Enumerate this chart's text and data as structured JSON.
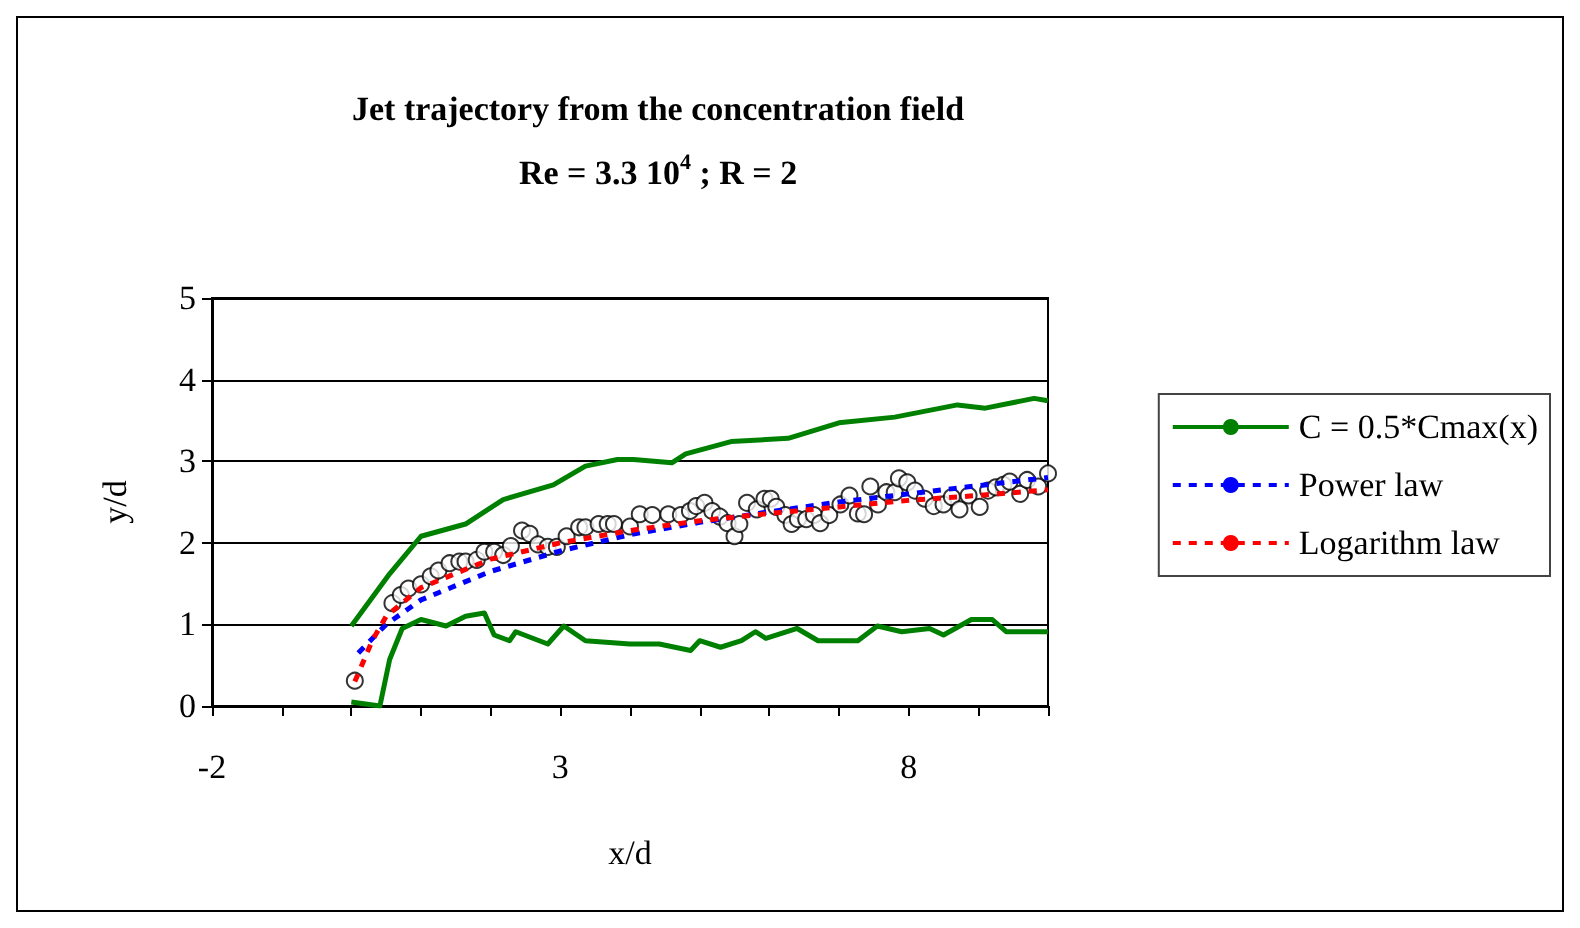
{
  "chart_data": {
    "type": "line",
    "title": "Jet trajectory from the concentration field",
    "subtitle": "Re = 3.3 10$^{4}$ ; R = 2",
    "xlabel": "x/d",
    "ylabel": "y/d",
    "xlim": [
      -2,
      10
    ],
    "xticks": [
      -2,
      {
        "value": -1,
        "label": null
      },
      {
        "value": 0,
        "label": null
      },
      {
        "value": 1,
        "label": null
      },
      {
        "value": 2,
        "label": null
      },
      3,
      {
        "value": 4,
        "label": null
      },
      {
        "value": 5,
        "label": null
      },
      {
        "value": 6,
        "label": null
      },
      {
        "value": 7,
        "label": null
      },
      8,
      {
        "value": 9,
        "label": null
      },
      {
        "value": 10,
        "label": null
      }
    ],
    "ylim": [
      0,
      5
    ],
    "yticks": [
      0,
      1,
      2,
      3,
      4,
      5
    ],
    "grid": "y",
    "legend": "right",
    "series": [
      {
        "name": "C = 0.5*Cmax(x)",
        "type": "line",
        "color": "#008000",
        "line_style": "solid",
        "marker": "none",
        "x": [
          0,
          0.55,
          1.0,
          1.64,
          2.18,
          2.9,
          3.36,
          3.82,
          4.05,
          4.6,
          4.8,
          5.45,
          6.27,
          7.0,
          7.8,
          8.7,
          9.1,
          9.8,
          10
        ],
        "values": [
          0.98,
          1.62,
          2.08,
          2.23,
          2.53,
          2.71,
          2.94,
          3.02,
          3.02,
          2.98,
          3.09,
          3.24,
          3.28,
          3.47,
          3.54,
          3.69,
          3.65,
          3.77,
          3.74
        ]
      },
      {
        "type": "line",
        "color": "#008000",
        "line_style": "solid",
        "marker": "none",
        "x": [
          0,
          0.41,
          0.55,
          0.73,
          1.0,
          1.36,
          1.64,
          1.91,
          2.05,
          2.27,
          2.36,
          2.82,
          3.05,
          3.36,
          4.0,
          4.42,
          4.87,
          5.0,
          5.3,
          5.6,
          5.8,
          5.95,
          6.4,
          6.7,
          7.27,
          7.55,
          7.9,
          8.3,
          8.5,
          8.9,
          9.2,
          9.4,
          10
        ],
        "values": [
          0.05,
          0.0,
          0.57,
          0.95,
          1.06,
          0.98,
          1.1,
          1.14,
          0.87,
          0.8,
          0.91,
          0.76,
          0.98,
          0.8,
          0.76,
          0.76,
          0.68,
          0.8,
          0.72,
          0.8,
          0.91,
          0.83,
          0.95,
          0.8,
          0.8,
          0.98,
          0.91,
          0.95,
          0.87,
          1.06,
          1.06,
          0.91,
          0.91
        ]
      },
      {
        "type": "scatter",
        "color": "#ffffff",
        "marker": "circle",
        "x": [
          0.05,
          0.59,
          0.71,
          0.82,
          1.0,
          1.14,
          1.25,
          1.41,
          1.55,
          1.64,
          1.8,
          1.91,
          2.05,
          2.18,
          2.29,
          2.45,
          2.56,
          2.68,
          2.82,
          2.95,
          3.09,
          3.27,
          3.36,
          3.55,
          3.68,
          3.77,
          4.0,
          4.14,
          4.32,
          4.55,
          4.73,
          4.86,
          4.95,
          5.07,
          5.18,
          5.29,
          5.4,
          5.5,
          5.57,
          5.68,
          5.82,
          5.93,
          6.02,
          6.1,
          6.23,
          6.32,
          6.41,
          6.53,
          6.64,
          6.73,
          6.86,
          7.02,
          7.15,
          7.27,
          7.36,
          7.45,
          7.56,
          7.68,
          7.8,
          7.86,
          7.98,
          8.09,
          8.23,
          8.36,
          8.5,
          8.62,
          8.73,
          8.86,
          9.02,
          9.14,
          9.25,
          9.36,
          9.45,
          9.6,
          9.7,
          9.86,
          10.0
        ],
        "values": [
          0.31,
          1.26,
          1.36,
          1.44,
          1.49,
          1.59,
          1.66,
          1.75,
          1.77,
          1.77,
          1.79,
          1.89,
          1.89,
          1.85,
          1.96,
          2.15,
          2.11,
          1.98,
          1.95,
          1.95,
          2.08,
          2.19,
          2.19,
          2.23,
          2.23,
          2.23,
          2.2,
          2.35,
          2.34,
          2.35,
          2.34,
          2.39,
          2.45,
          2.49,
          2.39,
          2.32,
          2.24,
          2.08,
          2.23,
          2.49,
          2.41,
          2.54,
          2.54,
          2.44,
          2.34,
          2.23,
          2.29,
          2.29,
          2.34,
          2.24,
          2.34,
          2.47,
          2.58,
          2.36,
          2.35,
          2.69,
          2.47,
          2.62,
          2.62,
          2.79,
          2.74,
          2.64,
          2.54,
          2.45,
          2.47,
          2.56,
          2.41,
          2.58,
          2.44,
          2.64,
          2.68,
          2.71,
          2.75,
          2.6,
          2.77,
          2.69,
          2.85
        ]
      },
      {
        "name": "Power law",
        "type": "line",
        "color": "#0000ff",
        "line_style": "dashed",
        "marker": "none",
        "x": [
          0.1,
          0.5,
          1,
          2,
          3,
          4,
          5,
          6,
          7,
          8,
          9,
          10
        ],
        "values": [
          0.65,
          1.0,
          1.3,
          1.65,
          1.9,
          2.1,
          2.25,
          2.38,
          2.5,
          2.6,
          2.7,
          2.8
        ]
      },
      {
        "name": "Logarithm law",
        "type": "line",
        "color": "#ff0000",
        "line_style": "dashed",
        "marker": "none",
        "x": [
          0.05,
          0.3,
          0.5,
          1,
          2,
          3,
          4,
          5,
          6,
          7,
          8,
          9,
          10
        ],
        "values": [
          0.3,
          0.8,
          1.1,
          1.45,
          1.8,
          2.0,
          2.15,
          2.27,
          2.36,
          2.44,
          2.52,
          2.58,
          2.65
        ]
      }
    ]
  }
}
